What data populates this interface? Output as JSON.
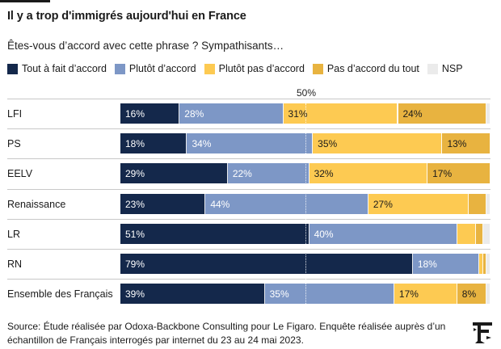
{
  "title": "Il y a trop d'immigrés aujourd'hui en France",
  "subtitle": "Êtes-vous d’accord avec cette phrase ? Sympathisants…",
  "half_label": "50%",
  "source_line1": "Source: Étude réalisée par Odoxa-Backbone Consulting pour Le Figaro. Enquête réalisée auprès d’un",
  "source_line2": "échantillon de Français interrogés par internet du 23 au 24 mai 2023.",
  "logo_icon": "figaro-f-logo",
  "colors": {
    "tout_a_fait": "#14284b",
    "plutot_accord": "#7d97c6",
    "plutot_pas": "#fdca52",
    "pas_du_tout": "#e8b340",
    "nsp": "#ebebeb"
  },
  "chart_data": {
    "type": "bar",
    "orientation": "horizontal-stacked-100",
    "title": "Il y a trop d'immigrés aujourd'hui en France",
    "subtitle": "Êtes-vous d’accord avec cette phrase ? Sympathisants…",
    "reference_line": {
      "value": 50,
      "label": "50%"
    },
    "categories": [
      "LFI",
      "PS",
      "EELV",
      "Renaissance",
      "LR",
      "RN",
      "Ensemble des Français"
    ],
    "series": [
      {
        "name": "Tout à fait d’accord",
        "color": "#14284b",
        "values": [
          16,
          18,
          29,
          23,
          51,
          79,
          39
        ],
        "labels": [
          "16%",
          "18%",
          "29%",
          "23%",
          "51%",
          "79%",
          "39%"
        ]
      },
      {
        "name": "Plutôt d’accord",
        "color": "#7d97c6",
        "values": [
          28,
          34,
          22,
          44,
          40,
          18,
          35
        ],
        "labels": [
          "28%",
          "34%",
          "22%",
          "44%",
          "40%",
          "18%",
          "35%"
        ]
      },
      {
        "name": "Plutôt pas d’accord",
        "color": "#fdca52",
        "values": [
          31,
          35,
          32,
          27,
          5,
          1,
          17
        ],
        "labels": [
          "31%",
          "35%",
          "32%",
          "27%",
          "",
          "",
          "17%"
        ]
      },
      {
        "name": "Pas d’accord du tout",
        "color": "#e8b340",
        "values": [
          24,
          13,
          17,
          5,
          2,
          1,
          8
        ],
        "labels": [
          "24%",
          "13%",
          "17%",
          "",
          "",
          "",
          "8%"
        ]
      },
      {
        "name": "NSP",
        "color": "#ebebeb",
        "values": [
          1,
          0,
          0,
          1,
          2,
          1,
          1
        ],
        "labels": [
          "",
          "",
          "",
          "",
          "",
          "",
          ""
        ]
      }
    ],
    "xlim": [
      0,
      100
    ],
    "legend_position": "top",
    "grid": false
  }
}
